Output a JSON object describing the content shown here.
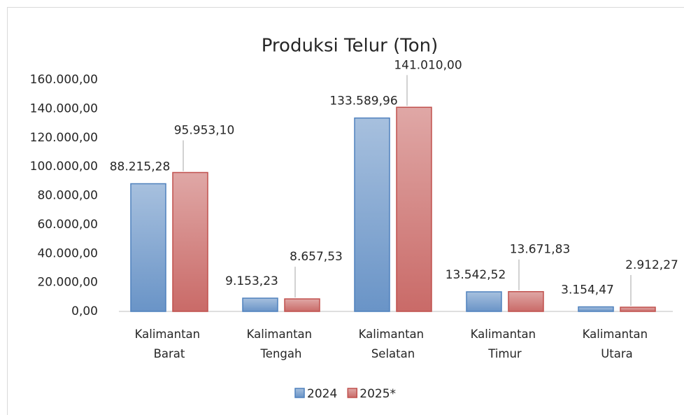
{
  "chart_data": {
    "type": "bar",
    "title": "Produksi Telur (Ton)",
    "categories": [
      "Kalimantan Barat",
      "Kalimantan Tengah",
      "Kalimantan Selatan",
      "Kalimantan Timur",
      "Kalimantan Utara"
    ],
    "series": [
      {
        "name": "2024",
        "color": "#4f81bd",
        "values": [
          88215.28,
          9153.23,
          133589.96,
          13542.52,
          3154.47
        ],
        "value_labels": [
          "88.215,28",
          "9.153,23",
          "133.589,96",
          "13.542,52",
          "3.154,47"
        ]
      },
      {
        "name": "2025*",
        "color": "#c0504d",
        "values": [
          95953.1,
          8657.53,
          141010.0,
          13671.83,
          2912.27
        ],
        "value_labels": [
          "95.953,10",
          "8.657,53",
          "141.010,00",
          "13.671,83",
          "2.912,27"
        ]
      }
    ],
    "ylim": [
      0,
      160000
    ],
    "yticks": [
      {
        "value": 0,
        "label": "0,00"
      },
      {
        "value": 20000,
        "label": "20.000,00"
      },
      {
        "value": 40000,
        "label": "40.000,00"
      },
      {
        "value": 60000,
        "label": "60.000,00"
      },
      {
        "value": 80000,
        "label": "80.000,00"
      },
      {
        "value": 100000,
        "label": "100.000,00"
      },
      {
        "value": 120000,
        "label": "120.000,00"
      },
      {
        "value": 140000,
        "label": "140.000,00"
      },
      {
        "value": 160000,
        "label": "160.000,00"
      }
    ],
    "grid": false,
    "legend": "bottom"
  }
}
